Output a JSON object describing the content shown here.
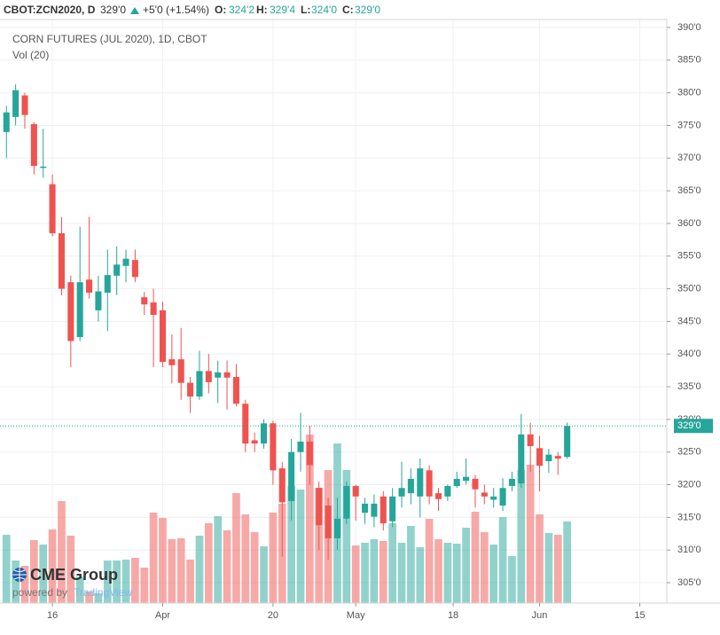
{
  "chart_data": {
    "type": "candlestick",
    "header": {
      "symbol": "CBOT:ZCN2020, D",
      "last": "329'0",
      "change": "+5'0 (+1.54%)",
      "open_label": "O:",
      "open": "324'2",
      "high_label": "H:",
      "high": "329'4",
      "low_label": "L:",
      "low": "324'0",
      "close_label": "C:",
      "close": "329'0"
    },
    "title": "CORN FUTURES (JUL 2020), 1D, CBOT",
    "volume_label": "Vol (20)",
    "logo": {
      "name": "CME Group",
      "powered": "powered by",
      "brand": "TradingView"
    },
    "open": [
      374,
      376.3,
      379.6,
      375.2,
      368.5,
      366,
      358.5,
      351,
      342.6,
      351.4,
      346.7,
      349.4,
      352,
      353.5,
      354.4,
      348.7,
      347.9,
      346.7,
      339.2,
      339.2,
      335.6,
      333.5,
      337.4,
      336.4,
      337.2,
      336.5,
      332.4,
      326.8,
      326.3,
      329.4,
      322.5,
      317.5,
      325,
      326.6,
      319.5,
      316.8,
      311.8,
      314.8,
      319.8,
      315.7,
      315.1,
      318.2,
      314.4,
      318.2,
      318.7,
      318.2,
      322.2,
      318.7,
      318.2,
      319.8,
      320.6,
      320.9,
      318.8,
      317.7,
      316.8,
      319.8,
      320.2,
      327.7,
      325.6,
      323.6,
      324.4,
      324.25
    ],
    "high": [
      378,
      381.3,
      380,
      375.5,
      374.5,
      367.5,
      361,
      352,
      359.5,
      361,
      352,
      356,
      356.5,
      356,
      356,
      349.5,
      350,
      348,
      343,
      344,
      336.5,
      340.5,
      340,
      339,
      339,
      338.5,
      333,
      328,
      330,
      329.8,
      323.5,
      327,
      331,
      329,
      320.5,
      318,
      318,
      320.5,
      320,
      318,
      318.5,
      319,
      319.5,
      323.5,
      322.5,
      324,
      323,
      319.5,
      320,
      322,
      324,
      321.5,
      320,
      319.5,
      321,
      322,
      330.8,
      329.5,
      327.5,
      325.5,
      325,
      329.5
    ],
    "low": [
      370,
      375,
      374.5,
      367.5,
      367,
      358,
      349,
      338,
      342,
      348.5,
      345,
      343.5,
      349,
      351,
      351,
      346,
      338,
      338,
      335.5,
      333,
      331,
      333,
      334,
      332.5,
      331.5,
      332,
      325,
      325,
      325.5,
      320,
      309,
      314.5,
      322,
      320,
      310,
      308.5,
      310,
      314,
      314.5,
      314,
      313.5,
      313,
      313.5,
      316.5,
      317,
      315,
      317,
      316,
      317.5,
      319.5,
      320,
      316.5,
      317,
      316.5,
      316,
      319,
      319.5,
      322,
      319,
      321.8,
      321.5,
      324
    ],
    "close": [
      377,
      380.4,
      376.6,
      368.8,
      368.7,
      358.5,
      350,
      342,
      351,
      349.4,
      349.6,
      352.1,
      353.7,
      354.6,
      351.8,
      347.6,
      346,
      338.8,
      338.3,
      335.6,
      333.5,
      337.4,
      335.7,
      337.2,
      336.4,
      332.4,
      326.3,
      326.3,
      329.4,
      322.2,
      317.3,
      325,
      326.6,
      323,
      313.8,
      311.8,
      314.8,
      319.8,
      318.2,
      317.1,
      317.1,
      314.1,
      318.2,
      319.5,
      320.9,
      322.5,
      318.2,
      317.8,
      319.8,
      320.9,
      321.2,
      319.3,
      318.2,
      318.2,
      319.5,
      320.9,
      327.7,
      325.9,
      322.9,
      324.6,
      324,
      329
    ],
    "volume": [
      77,
      48,
      42,
      71,
      66,
      83,
      115,
      76,
      30,
      13,
      11,
      48,
      48,
      49,
      51,
      40,
      102,
      96,
      72,
      73,
      49,
      76,
      90,
      98,
      82,
      124,
      100,
      80,
      64,
      102,
      112,
      132,
      128,
      190,
      130,
      150,
      180,
      150,
      65,
      68,
      72,
      70,
      90,
      68,
      87,
      63,
      95,
      72,
      68,
      67,
      85,
      103,
      80,
      66,
      97,
      53,
      150,
      156,
      100,
      79,
      77,
      92
    ],
    "up_color": "#26a69a",
    "down_color": "#ef5350",
    "xlim": [
      -0.7,
      71.84
    ],
    "ylim": [
      301.88,
      391.22
    ],
    "vlim": [
      0,
      250
    ],
    "xticks": [
      {
        "value": 5,
        "label": "16"
      },
      {
        "value": 17,
        "label": "Apr"
      },
      {
        "value": 29,
        "label": "20"
      },
      {
        "value": 38,
        "label": "May"
      },
      {
        "value": 48.6,
        "label": "18"
      },
      {
        "value": 58,
        "label": "Jun"
      },
      {
        "value": 68.9,
        "label": "15"
      }
    ],
    "yticks": [
      {
        "value": 305,
        "label": "305'0"
      },
      {
        "value": 310,
        "label": "310'0"
      },
      {
        "value": 315,
        "label": "315'0"
      },
      {
        "value": 320,
        "label": "320'0"
      },
      {
        "value": 325,
        "label": "325'0"
      },
      {
        "value": 330,
        "label": "330'0"
      },
      {
        "value": 335,
        "label": "335'0"
      },
      {
        "value": 340,
        "label": "340'0"
      },
      {
        "value": 345,
        "label": "345'0"
      },
      {
        "value": 350,
        "label": "350'0"
      },
      {
        "value": 355,
        "label": "355'0"
      },
      {
        "value": 360,
        "label": "360'0"
      },
      {
        "value": 365,
        "label": "365'0"
      },
      {
        "value": 370,
        "label": "370'0"
      },
      {
        "value": 375,
        "label": "375'0"
      },
      {
        "value": 380,
        "label": "380'0"
      },
      {
        "value": 385,
        "label": "385'0"
      },
      {
        "value": 390,
        "label": "390'0"
      }
    ],
    "last_price": {
      "value": 329,
      "label": "329'0"
    },
    "grid": true
  }
}
